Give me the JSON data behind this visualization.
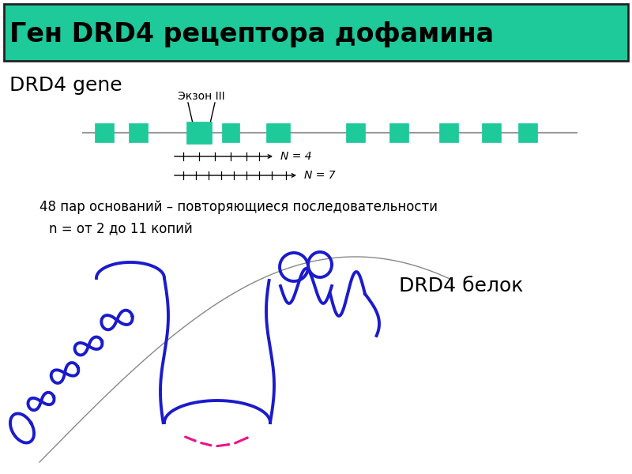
{
  "title": "Ген DRD4 рецептора дофамина",
  "title_bg": "#1EC99A",
  "title_fg": "#000000",
  "gene_label": "DRD4 gene",
  "exon_label": "Экзон III",
  "exon_color": "#1EC99A",
  "line_color": "#999999",
  "n4_label": "N = 4",
  "n7_label": "N = 7",
  "text1": "48 пар оснований – повторяющиеся последовательности",
  "text2": "n = от 2 до 11 копий",
  "protein_label": "DRD4 белок",
  "blue_color": "#1B1BCC",
  "pink_color": "#EE1188",
  "arc_color": "#888888",
  "bg_color": "#FFFFFF"
}
